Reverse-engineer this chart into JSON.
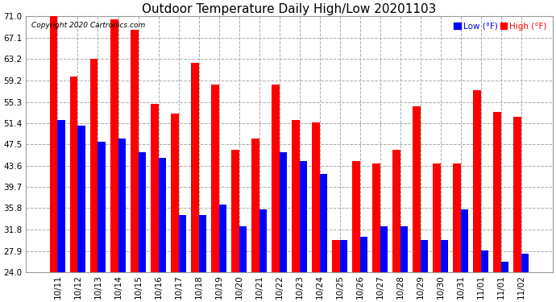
{
  "title": "Outdoor Temperature Daily High/Low 20201103",
  "copyright": "Copyright 2020 Cartronics.com",
  "legend_low": "Low",
  "legend_high": "High",
  "legend_unit": "(°F)",
  "dates": [
    "10/11",
    "10/12",
    "10/13",
    "10/14",
    "10/15",
    "10/16",
    "10/17",
    "10/18",
    "10/19",
    "10/20",
    "10/21",
    "10/22",
    "10/23",
    "10/24",
    "10/25",
    "10/26",
    "10/27",
    "10/28",
    "10/29",
    "10/30",
    "10/31",
    "11/01",
    "11/01",
    "11/02"
  ],
  "high": [
    71.0,
    60.0,
    63.2,
    70.5,
    68.5,
    55.0,
    53.2,
    62.5,
    58.5,
    46.5,
    48.5,
    58.5,
    52.0,
    51.5,
    30.0,
    44.5,
    44.0,
    46.5,
    54.5,
    44.0,
    44.0,
    57.5,
    53.5,
    52.5
  ],
  "low": [
    52.0,
    51.0,
    48.0,
    48.5,
    46.0,
    45.0,
    34.5,
    34.5,
    36.5,
    32.5,
    35.5,
    46.0,
    44.5,
    42.0,
    30.0,
    30.5,
    32.5,
    32.5,
    30.0,
    30.0,
    35.5,
    28.0,
    26.0,
    27.5
  ],
  "high_color": "#ff0000",
  "low_color": "#0000ff",
  "background_color": "#ffffff",
  "grid_color": "#aaaaaa",
  "title_fontsize": 11,
  "tick_fontsize": 7.5,
  "ylim_min": 24.0,
  "ylim_max": 71.0,
  "yticks": [
    24.0,
    27.9,
    31.8,
    35.8,
    39.7,
    43.6,
    47.5,
    51.4,
    55.3,
    59.2,
    63.2,
    67.1,
    71.0
  ]
}
